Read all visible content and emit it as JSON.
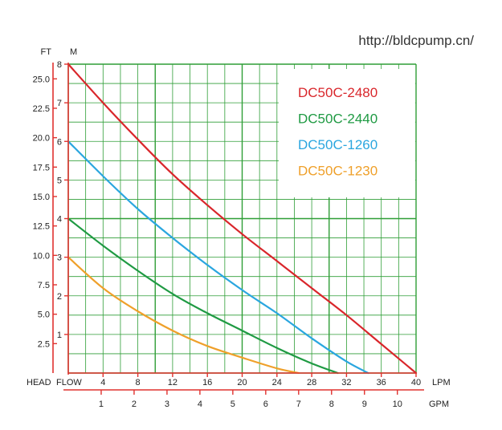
{
  "watermark": "http://bldcpump.cn/",
  "colors": {
    "grid": "#2f9e37",
    "axis": "#e0322f",
    "text": "#222222",
    "DC50C-2480": "#d9262b",
    "DC50C-2440": "#1f9a43",
    "DC50C-1260": "#2aa6df",
    "DC50C-1230": "#efa02a"
  },
  "chart_data": {
    "type": "line",
    "title": "",
    "xlabel": "LPM",
    "x2label": "GPM",
    "ylabel_m": "M",
    "ylabel_ft": "FT",
    "corner_head": "HEAD",
    "corner_flow": "FLOW",
    "xlim": [
      0,
      40
    ],
    "ylim": [
      0,
      8
    ],
    "x_ticks": [
      "4",
      "8",
      "12",
      "16",
      "20",
      "24",
      "28",
      "32",
      "36",
      "40"
    ],
    "x_tick_values": [
      4,
      8,
      12,
      16,
      20,
      24,
      28,
      32,
      36,
      40
    ],
    "x2_ticks": [
      "1",
      "2",
      "3",
      "4",
      "5",
      "6",
      "7",
      "8",
      "9",
      "10"
    ],
    "x2_tick_values": [
      1,
      2,
      3,
      4,
      5,
      6,
      7,
      8,
      9,
      10
    ],
    "lpm_per_gpm": 3.785,
    "y_ticks_m": [
      "1",
      "2",
      "3",
      "4",
      "5",
      "6",
      "7",
      "8"
    ],
    "y_tick_values_m": [
      1,
      2,
      3,
      4,
      5,
      6,
      7,
      8
    ],
    "y_ticks_ft": [
      "2.5",
      "5.0",
      "7.5",
      "10.0",
      "12.5",
      "15.0",
      "17.5",
      "20.0",
      "22.5",
      "25.0"
    ],
    "y_tick_values_ft": [
      2.5,
      5.0,
      7.5,
      10.0,
      12.5,
      15.0,
      17.5,
      20.0,
      22.5,
      25.0
    ],
    "ft_per_m": 3.2808,
    "legend": [
      "DC50C-2480",
      "DC50C-2440",
      "DC50C-1260",
      "DC50C-1230"
    ],
    "legend_position": "top-right",
    "series": [
      {
        "name": "DC50C-2480",
        "x": [
          0,
          4,
          8,
          12,
          16,
          20,
          24,
          28,
          32,
          36,
          40
        ],
        "y": [
          8.0,
          7.0,
          6.05,
          5.15,
          4.35,
          3.6,
          2.9,
          2.2,
          1.5,
          0.75,
          0
        ]
      },
      {
        "name": "DC50C-2440",
        "x": [
          0,
          4,
          8,
          12,
          16,
          20,
          24,
          28,
          31
        ],
        "y": [
          4.0,
          3.3,
          2.65,
          2.05,
          1.55,
          1.1,
          0.65,
          0.25,
          0
        ]
      },
      {
        "name": "DC50C-1260",
        "x": [
          0,
          4,
          8,
          12,
          16,
          20,
          24,
          28,
          32,
          34.5
        ],
        "y": [
          6.0,
          5.1,
          4.25,
          3.5,
          2.8,
          2.15,
          1.55,
          0.9,
          0.3,
          0
        ]
      },
      {
        "name": "DC50C-1230",
        "x": [
          0,
          4,
          8,
          12,
          16,
          20,
          24,
          26.5
        ],
        "y": [
          3.0,
          2.2,
          1.6,
          1.1,
          0.7,
          0.4,
          0.12,
          0
        ]
      }
    ]
  }
}
